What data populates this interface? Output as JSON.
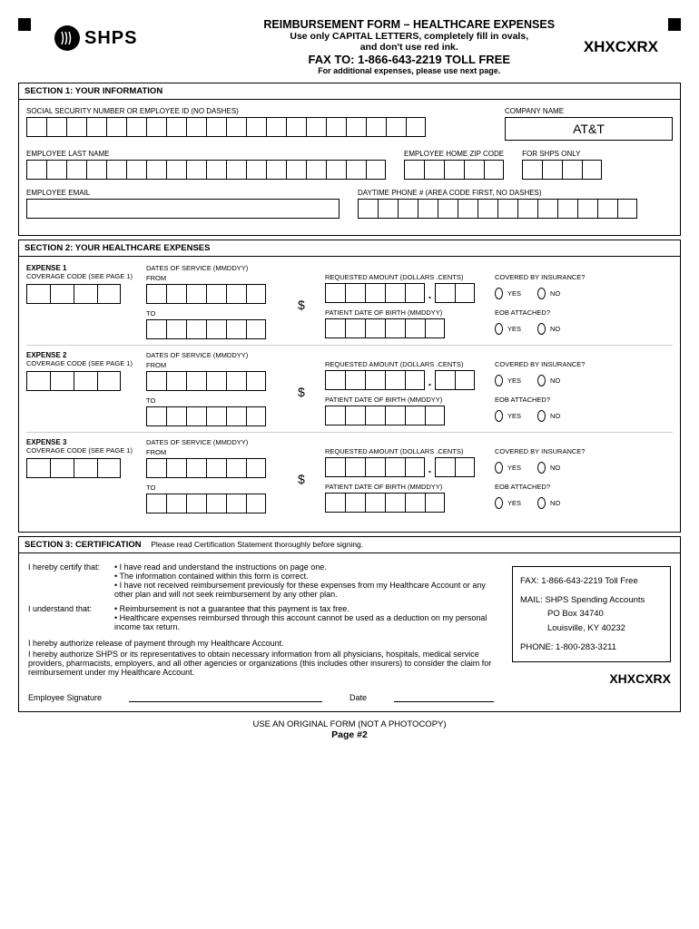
{
  "header": {
    "logo_text": "SHPS",
    "title": "REIMBURSEMENT FORM – HEALTHCARE EXPENSES",
    "subtitle1": "Use only CAPITAL LETTERS, completely fill in ovals,",
    "subtitle2": "and don't use red ink.",
    "fax": "FAX TO:  1-866-643-2219  TOLL FREE",
    "note": "For additional expenses, please use next page.",
    "code": "XHXCXRX"
  },
  "section1": {
    "title": "SECTION 1: YOUR INFORMATION",
    "ssn_label": "SOCIAL SECURITY NUMBER OR EMPLOYEE ID (NO DASHES)",
    "company_label": "COMPANY NAME",
    "company_value": "AT&T",
    "lastname_label": "EMPLOYEE LAST NAME",
    "zip_label": "EMPLOYEE HOME ZIP CODE",
    "shps_label": "FOR SHPS ONLY",
    "email_label": "EMPLOYEE EMAIL",
    "phone_label": "DAYTIME PHONE # (AREA CODE FIRST, NO DASHES)"
  },
  "section2": {
    "title": "SECTION 2: YOUR HEALTHCARE EXPENSES",
    "expenses": [
      {
        "head": "EXPENSE 1"
      },
      {
        "head": "EXPENSE 2"
      },
      {
        "head": "EXPENSE 3"
      }
    ],
    "coverage_label": "COVERAGE CODE   (SEE PAGE 1)",
    "dates_label": "DATES OF SERVICE  (MMDDYY)",
    "from_label": "FROM",
    "to_label": "TO",
    "amount_label": "REQUESTED AMOUNT (DOLLARS .CENTS)",
    "dob_label": "PATIENT DATE OF BIRTH    (MMDDYY)",
    "insurance_label": "COVERED BY INSURANCE?",
    "eob_label": "EOB ATTACHED?",
    "yes": "YES",
    "no": "NO",
    "dollar": "$"
  },
  "section3": {
    "title": "SECTION 3: CERTIFICATION",
    "title_note": "Please read Certification Statement thoroughly before signing.",
    "certify_prefix": "I hereby certify that:",
    "certify1": "• I have read and understand  the instructions on page one.",
    "certify2": "• The information contained within this form is correct.",
    "certify3": "• I have not received reimbursement previously for these expenses from my Healthcare Account or any other plan and will not seek reimbursement by any other plan.",
    "understand_prefix": "I understand that:",
    "understand1": "• Reimbursement is not a guarantee that this payment is tax free.",
    "understand2": "• Healthcare expenses reimbursed through this account cannot be used as a deduction on my personal income tax return.",
    "auth1": "I hereby authorize release of payment through my Healthcare Account.",
    "auth2": "I hereby authorize SHPS or its representatives to obtain necessary information from all physicians, hospitals, medical service providers, pharmacists, employers, and all other agencies or organizations (this includes other insurers) to consider the claim for reimbursement under my Healthcare Account.",
    "contact_fax": "FAX: 1-866-643-2219 Toll Free",
    "contact_mail1": "MAIL: SHPS Spending Accounts",
    "contact_mail2": "PO Box 34740",
    "contact_mail3": "Louisville, KY 40232",
    "contact_phone": "PHONE: 1-800-283-3211",
    "code": "XHXCXRX",
    "sig_label": "Employee Signature",
    "date_label": "Date"
  },
  "footer": {
    "line1": "USE AN ORIGINAL FORM (NOT A PHOTOCOPY)",
    "line2": "Page #2"
  }
}
